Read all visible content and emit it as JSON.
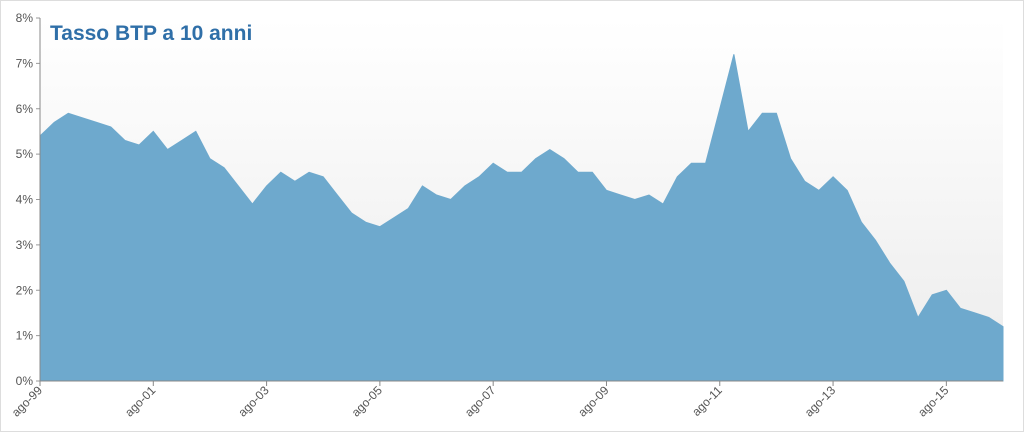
{
  "chart_data": {
    "type": "area",
    "title": "Tasso BTP a 10 anni",
    "categories": [
      "ago-99",
      null,
      null,
      null,
      null,
      null,
      null,
      null,
      "ago-01",
      null,
      null,
      null,
      null,
      null,
      null,
      null,
      "ago-03",
      null,
      null,
      null,
      null,
      null,
      null,
      null,
      "ago-05",
      null,
      null,
      null,
      null,
      null,
      null,
      null,
      "ago-07",
      null,
      null,
      null,
      null,
      null,
      null,
      null,
      "ago-09",
      null,
      null,
      null,
      null,
      null,
      null,
      null,
      "ago-11",
      null,
      null,
      null,
      null,
      null,
      null,
      null,
      "ago-13",
      null,
      null,
      null,
      null,
      null,
      null,
      null,
      "ago-15",
      null,
      null,
      null,
      null
    ],
    "values": [
      5.4,
      5.7,
      5.9,
      5.8,
      5.7,
      5.6,
      5.3,
      5.2,
      5.5,
      5.1,
      5.3,
      5.5,
      4.9,
      4.7,
      4.3,
      3.9,
      4.3,
      4.6,
      4.4,
      4.6,
      4.5,
      4.1,
      3.7,
      3.5,
      3.4,
      3.6,
      3.8,
      4.3,
      4.1,
      4.0,
      4.3,
      4.5,
      4.8,
      4.6,
      4.6,
      4.9,
      5.1,
      4.9,
      4.6,
      4.6,
      4.2,
      4.1,
      4.0,
      4.1,
      3.9,
      4.5,
      4.8,
      4.8,
      6.0,
      7.2,
      5.5,
      5.9,
      5.9,
      4.9,
      4.4,
      4.2,
      4.5,
      4.2,
      3.5,
      3.1,
      2.6,
      2.2,
      1.4,
      1.9,
      2.0,
      1.6,
      1.5,
      1.4,
      1.2
    ],
    "color": "#6ea9cd",
    "ylim": [
      0,
      8
    ],
    "yticks": [
      {
        "value": 0,
        "label": "0%"
      },
      {
        "value": 1,
        "label": "1%"
      },
      {
        "value": 2,
        "label": "2%"
      },
      {
        "value": 3,
        "label": "3%"
      },
      {
        "value": 4,
        "label": "4%"
      },
      {
        "value": 5,
        "label": "5%"
      },
      {
        "value": 6,
        "label": "6%"
      },
      {
        "value": 7,
        "label": "7%"
      },
      {
        "value": 8,
        "label": "8%"
      }
    ]
  }
}
